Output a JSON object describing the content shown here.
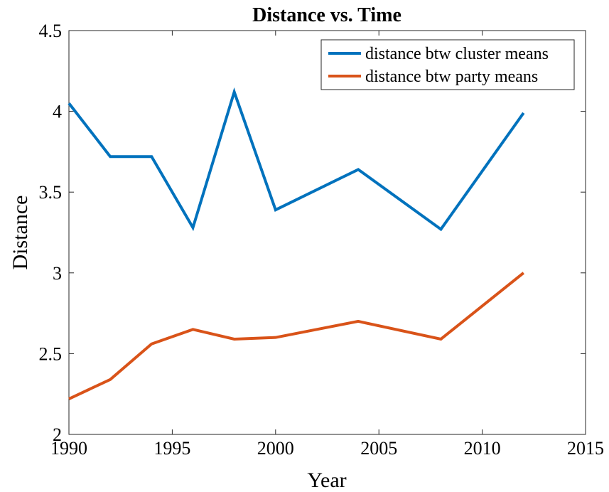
{
  "chart_data": {
    "type": "line",
    "title": "Distance vs. Time",
    "xlabel": "Year",
    "ylabel": "Distance",
    "x": [
      1990,
      1992,
      1994,
      1996,
      1998,
      2000,
      2004,
      2008,
      2012
    ],
    "series": [
      {
        "name": "distance btw cluster means",
        "color": "#0072bd",
        "values": [
          4.05,
          3.72,
          3.72,
          3.28,
          4.12,
          3.39,
          3.64,
          3.27,
          3.99
        ]
      },
      {
        "name": "distance btw party means",
        "color": "#d95319",
        "values": [
          2.22,
          2.34,
          2.56,
          2.65,
          2.59,
          2.6,
          2.7,
          2.59,
          3.0
        ]
      }
    ],
    "xlim": [
      1990,
      2015
    ],
    "xticks": [
      1990,
      1995,
      2000,
      2005,
      2010,
      2015
    ],
    "ylim": [
      2,
      4.5
    ],
    "yticks": [
      2,
      2.5,
      3,
      3.5,
      4,
      4.5
    ],
    "grid": false,
    "legend": "northeast"
  }
}
